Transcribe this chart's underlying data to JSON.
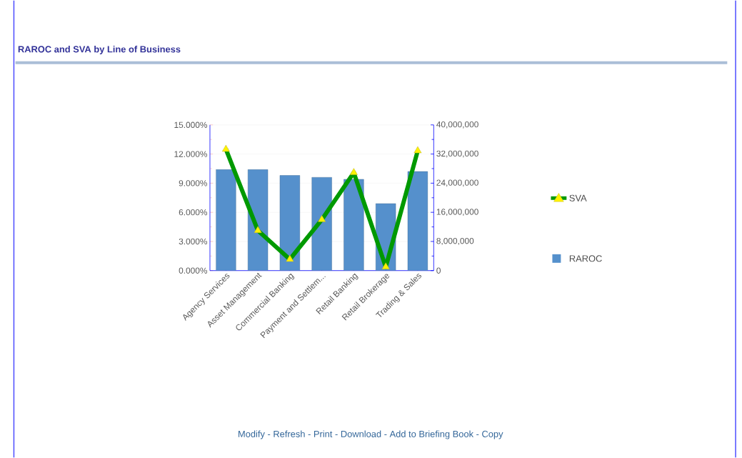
{
  "chart_data": {
    "type": "bar",
    "title": "RAROC and SVA by Line of Business",
    "categories": [
      "Agency Services",
      "Asset Management",
      "Commercial Banking",
      "Payment and Settlem...",
      "Retail Banking",
      "Retail Brokerage",
      "Trading & Sales"
    ],
    "series": [
      {
        "name": "SVA",
        "type": "line",
        "axis": "y2",
        "color": "#009900",
        "marker": "triangle",
        "values": [
          33300000,
          11000000,
          3100000,
          14000000,
          26900000,
          1000000,
          32900000
        ]
      },
      {
        "name": "RAROC",
        "type": "bar",
        "color": "#5590cc",
        "values": [
          10.4,
          10.4,
          9.8,
          9.6,
          9.4,
          6.9,
          10.2
        ]
      }
    ],
    "ylim": [
      0,
      15
    ],
    "yticks": [
      {
        "value": 0,
        "label": "0.000%"
      },
      {
        "value": 3,
        "label": "3.000%"
      },
      {
        "value": 6,
        "label": "6.000%"
      },
      {
        "value": 9,
        "label": "9.000%"
      },
      {
        "value": 12,
        "label": "12.000%"
      },
      {
        "value": 15,
        "label": "15.000%"
      }
    ],
    "y2lim": [
      0,
      40000000
    ],
    "y2ticks": [
      0,
      {
        "value": 8000000,
        "label": "8,000,000"
      },
      {
        "value": 16000000,
        "label": "16,000,000"
      },
      {
        "value": 24000000,
        "label": "24,000,000"
      },
      {
        "value": 32000000,
        "label": "32,000,000"
      },
      {
        "value": 40000000,
        "label": "40,000,000"
      }
    ],
    "grid": "y",
    "legend": "right",
    "annotations": [
      "Modify - Refresh - Print - Download - Add to Briefing Book - Copy"
    ]
  }
}
